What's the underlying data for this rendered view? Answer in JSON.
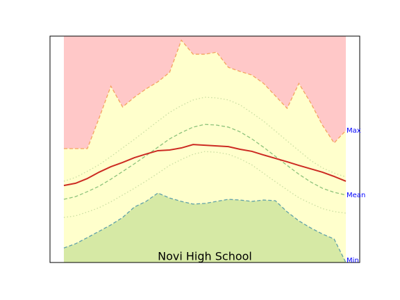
{
  "chart_data": {
    "type": "area",
    "title": "Novi High School",
    "x": [
      0,
      1,
      2,
      3,
      4,
      5,
      6,
      7,
      8,
      9,
      10,
      11,
      12,
      13,
      14,
      15,
      16,
      17,
      18,
      19,
      20,
      21,
      22,
      23,
      24
    ],
    "xlim": [
      -1.18,
      25.18
    ],
    "ylim": [
      0,
      100
    ],
    "fills": {
      "above_max": "#ffc8c8",
      "between": "#ffffcc",
      "below_min": "#d6e9a5"
    },
    "series": [
      {
        "name": "Max",
        "color": "#f4a460",
        "style": "dashed",
        "values": [
          50.3,
          50.3,
          50.3,
          63.8,
          77.9,
          68.7,
          73.0,
          76.7,
          79.8,
          84.0,
          98.2,
          92.0,
          92.0,
          92.9,
          86.2,
          84.4,
          82.8,
          79.1,
          73.6,
          68.1,
          79.1,
          70.6,
          60.7,
          52.8,
          58.3
        ]
      },
      {
        "name": "Mean",
        "color": "#8cc27a",
        "style": "dashed",
        "values": [
          27.9,
          29.1,
          31.3,
          33.7,
          36.8,
          40.2,
          43.6,
          47.2,
          50.9,
          54.6,
          57.4,
          59.8,
          61.0,
          60.7,
          59.8,
          57.7,
          54.6,
          50.9,
          46.9,
          42.9,
          39.0,
          35.6,
          32.8,
          31.0,
          29.8
        ]
      },
      {
        "name": "Min",
        "color": "#5fa0a8",
        "style": "dashed",
        "values": [
          6.4,
          8.3,
          11.0,
          13.8,
          16.6,
          19.9,
          24.5,
          27.0,
          30.7,
          28.5,
          27.0,
          25.8,
          26.1,
          27.0,
          27.9,
          27.6,
          27.0,
          27.6,
          27.3,
          22.4,
          18.4,
          15.3,
          12.6,
          10.4,
          0
        ]
      },
      {
        "color": "#c8dca0",
        "style": "dotted",
        "values": [
          35.9,
          37.6,
          40.3,
          43.2,
          46.8,
          50.6,
          54.4,
          58.4,
          62.4,
          66.3,
          69.3,
          71.8,
          73.0,
          72.7,
          71.8,
          69.6,
          66.1,
          62.4,
          58.1,
          53.7,
          49.4,
          45.1,
          41.8,
          39.5,
          37.8
        ]
      },
      {
        "color": "#c8dca0",
        "style": "dotted",
        "values": [
          19.9,
          20.6,
          22.3,
          24.2,
          26.8,
          29.8,
          32.8,
          36.0,
          39.4,
          42.9,
          45.5,
          47.8,
          49.0,
          48.7,
          47.8,
          45.8,
          43.1,
          39.4,
          35.7,
          32.1,
          28.6,
          26.1,
          23.8,
          22.5,
          21.8
        ]
      },
      {
        "color": "#cc2a22",
        "style": "solid",
        "values": [
          34.0,
          35.0,
          37.1,
          39.9,
          42.3,
          44.2,
          46.3,
          47.9,
          49.4,
          49.7,
          50.6,
          52.1,
          51.8,
          51.5,
          51.2,
          50.0,
          49.1,
          47.5,
          46.0,
          44.5,
          42.9,
          41.4,
          39.9,
          38.0,
          35.9
        ]
      }
    ]
  }
}
